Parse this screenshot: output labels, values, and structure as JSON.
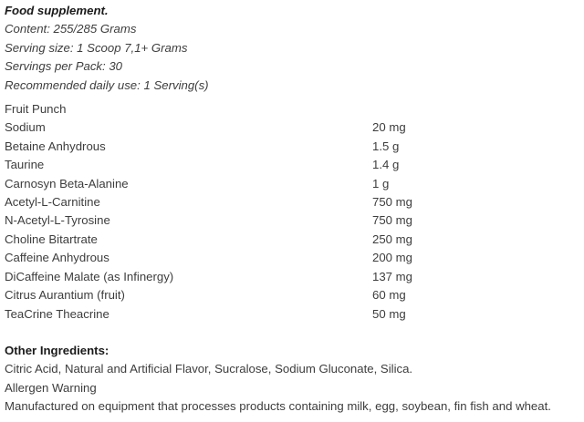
{
  "theme": {
    "text_color": "#3d3d3d",
    "heading_color": "#1a1a1a",
    "background": "#ffffff"
  },
  "header": {
    "title": "Food supplement.",
    "content": "Content: 255/285 Grams",
    "serving_size": "Serving size: 1 Scoop 7,1+ Grams",
    "servings_per_pack": "Servings per Pack: 30",
    "daily_use": "Recommended daily use: 1 Serving(s)"
  },
  "flavor": "Fruit Punch",
  "nutrients": [
    {
      "name": "Sodium",
      "amount": "20 mg"
    },
    {
      "name": "Betaine Anhydrous",
      "amount": "1.5 g"
    },
    {
      "name": "Taurine",
      "amount": "1.4 g"
    },
    {
      "name": "Carnosyn Beta-Alanine",
      "amount": "1 g"
    },
    {
      "name": "Acetyl-L-Carnitine",
      "amount": "750 mg"
    },
    {
      "name": "N-Acetyl-L-Tyrosine",
      "amount": "750 mg"
    },
    {
      "name": "Choline Bitartrate",
      "amount": "250 mg"
    },
    {
      "name": "Caffeine Anhydrous",
      "amount": "200 mg"
    },
    {
      "name": "DiCaffeine Malate (as Infinergy)",
      "amount": "137 mg"
    },
    {
      "name": "Citrus Aurantium (fruit)",
      "amount": "60 mg"
    },
    {
      "name": "TeaCrine Theacrine",
      "amount": "50 mg"
    }
  ],
  "footer": {
    "other_ingredients_heading": "Other Ingredients:",
    "other_ingredients_text": "Citric Acid, Natural and Artificial Flavor, Sucralose, Sodium Gluconate, Silica.",
    "allergen_heading": "Allergen Warning",
    "allergen_text": "Manufactured on equipment that processes products containing milk, egg, soybean, fin fish and wheat."
  }
}
